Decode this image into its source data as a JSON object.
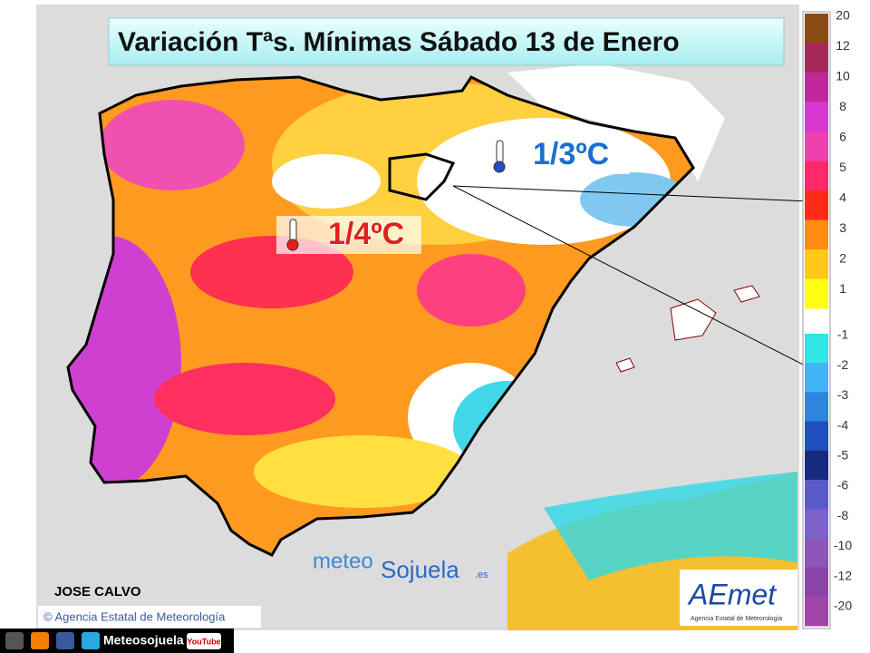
{
  "header": {
    "title": "Variación Tªs. Mínimas Sábado 13 de Enero"
  },
  "annotations": [
    {
      "label": "1/3ºC",
      "color": "#1a6fd0"
    },
    {
      "label": "1/4ºC",
      "color": "#e0201a"
    }
  ],
  "legend": {
    "positive": [
      {
        "label": 20,
        "color": "#8a4a14"
      },
      {
        "label": 12,
        "color": "#a8285a"
      },
      {
        "label": 10,
        "color": "#c0289a"
      },
      {
        "label": 8,
        "color": "#d838d0"
      },
      {
        "label": 6,
        "color": "#f040b0"
      },
      {
        "label": 5,
        "color": "#ff2868"
      },
      {
        "label": 4,
        "color": "#ff2a1a"
      },
      {
        "label": 3,
        "color": "#ff8a10"
      },
      {
        "label": 2,
        "color": "#ffc818"
      },
      {
        "label": 1,
        "color": "#ffff10"
      }
    ],
    "negative": [
      {
        "label": -1,
        "color": "#30e6e6"
      },
      {
        "label": -2,
        "color": "#40b4f4"
      },
      {
        "label": -3,
        "color": "#2c86e0"
      },
      {
        "label": -4,
        "color": "#2050c0"
      },
      {
        "label": -5,
        "color": "#182a80"
      },
      {
        "label": -6,
        "color": "#5a5ac8"
      },
      {
        "label": -8,
        "color": "#7c62c8"
      },
      {
        "label": -10,
        "color": "#8c56b8"
      },
      {
        "label": -12,
        "color": "#8a44a8"
      },
      {
        "label": -20,
        "color": "#a044a8"
      }
    ]
  },
  "credits": {
    "author": "JOSE CALVO",
    "source": "© Agencia Estatal de Meteorología",
    "watermark": [
      "meteo",
      "Sojuela",
      ".es"
    ],
    "logo": "AEmet",
    "logo_subtitle": "Agencia Estatal de Meteorología"
  },
  "footer": {
    "handle": "Meteosojuela",
    "youtube": "YouTube"
  }
}
